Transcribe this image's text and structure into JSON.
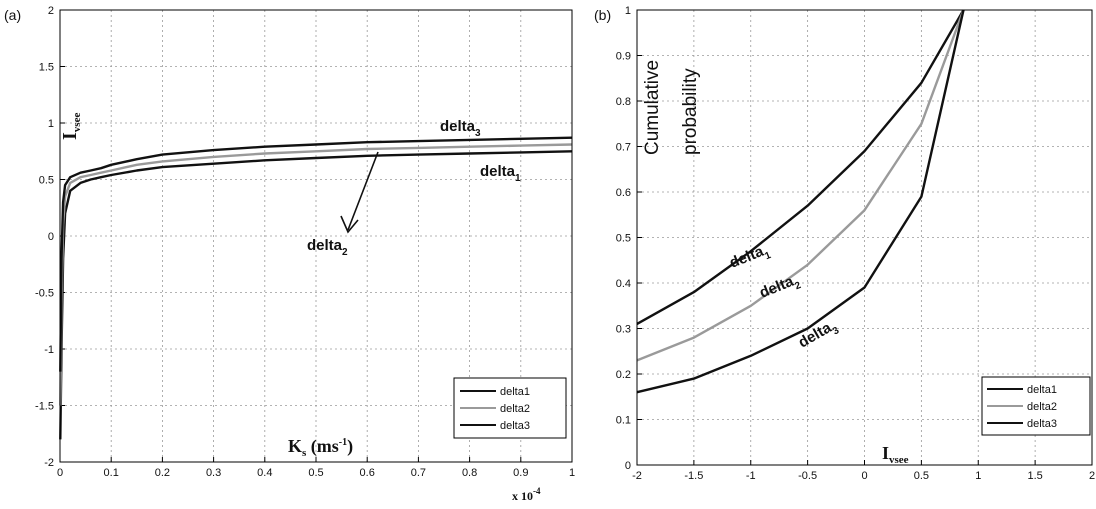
{
  "chart_data": [
    {
      "panel_label": "(a)",
      "type": "line",
      "xlim": [
        0,
        1
      ],
      "ylim": [
        -2,
        2
      ],
      "x_ticks": [
        "0",
        "0.1",
        "0.2",
        "0.3",
        "0.4",
        "0.5",
        "0.6",
        "0.7",
        "0.8",
        "0.9",
        "1"
      ],
      "y_ticks": [
        "-2",
        "-1.5",
        "-1",
        "-0.5",
        "0",
        "0.5",
        "1",
        "1.5",
        "2"
      ],
      "x_multiplier": "x 10",
      "x_multiplier_exp": "-4",
      "xlabel": "K",
      "xlabel_sub": "s",
      "xlabel_unit_pre": " (ms",
      "xlabel_unit_sup": "-1",
      "xlabel_unit_post": ")",
      "ylabel": "I",
      "ylabel_sub": "vsee",
      "grid": true,
      "legend_position": "bottom-right",
      "legend": [
        "delta1",
        "delta2",
        "delta3"
      ],
      "annotations": [
        {
          "text": "delta",
          "sub": "3"
        },
        {
          "text": "delta",
          "sub": "1"
        },
        {
          "text": "delta",
          "sub": "2"
        }
      ],
      "series": [
        {
          "name": "delta1",
          "color": "#111111",
          "x": [
            0.0005,
            0.003,
            0.006,
            0.01,
            0.02,
            0.04,
            0.06,
            0.08,
            0.1,
            0.15,
            0.2,
            0.3,
            0.4,
            0.5,
            0.6,
            0.7,
            0.8,
            0.9,
            1.0
          ],
          "y": [
            -1.8,
            -1.0,
            -0.2,
            0.2,
            0.4,
            0.47,
            0.5,
            0.52,
            0.54,
            0.58,
            0.61,
            0.64,
            0.67,
            0.69,
            0.71,
            0.72,
            0.73,
            0.74,
            0.75
          ]
        },
        {
          "name": "delta2",
          "color": "#9a9a9a",
          "x": [
            0.0005,
            0.003,
            0.006,
            0.01,
            0.02,
            0.04,
            0.06,
            0.08,
            0.1,
            0.15,
            0.2,
            0.3,
            0.4,
            0.5,
            0.6,
            0.7,
            0.8,
            0.9,
            1.0
          ],
          "y": [
            -1.5,
            -0.6,
            0.1,
            0.35,
            0.47,
            0.52,
            0.54,
            0.56,
            0.58,
            0.63,
            0.66,
            0.7,
            0.73,
            0.75,
            0.77,
            0.78,
            0.79,
            0.8,
            0.81
          ]
        },
        {
          "name": "delta3",
          "color": "#111111",
          "x": [
            0.0005,
            0.003,
            0.006,
            0.01,
            0.02,
            0.04,
            0.06,
            0.08,
            0.1,
            0.15,
            0.2,
            0.3,
            0.4,
            0.5,
            0.6,
            0.7,
            0.8,
            0.9,
            1.0
          ],
          "y": [
            -1.2,
            -0.2,
            0.3,
            0.45,
            0.52,
            0.56,
            0.58,
            0.6,
            0.63,
            0.68,
            0.72,
            0.76,
            0.79,
            0.81,
            0.83,
            0.84,
            0.85,
            0.86,
            0.87
          ]
        }
      ]
    },
    {
      "panel_label": "(b)",
      "type": "line",
      "xlim": [
        -2,
        2
      ],
      "ylim": [
        0,
        1
      ],
      "x_ticks": [
        "-2",
        "-1.5",
        "-1",
        "-0.5",
        "0",
        "0.5",
        "1",
        "1.5",
        "2"
      ],
      "y_ticks": [
        "0",
        "0.1",
        "0.2",
        "0.3",
        "0.4",
        "0.5",
        "0.6",
        "0.7",
        "0.8",
        "0.9",
        "1"
      ],
      "xlabel": "I",
      "xlabel_sub": "vsee",
      "ylabel_lines": [
        "Cumulative",
        "probability"
      ],
      "grid": true,
      "legend_position": "bottom-right",
      "legend": [
        "delta1",
        "delta2",
        "delta3"
      ],
      "annotations": [
        {
          "text": "delta",
          "sub": "1"
        },
        {
          "text": "delta",
          "sub": "2"
        },
        {
          "text": "delta",
          "sub": "3"
        }
      ],
      "series": [
        {
          "name": "delta1",
          "color": "#111111",
          "x": [
            -2,
            -1.5,
            -1,
            -0.5,
            0,
            0.5,
            0.87
          ],
          "y": [
            0.31,
            0.38,
            0.47,
            0.57,
            0.69,
            0.84,
            1.0
          ]
        },
        {
          "name": "delta2",
          "color": "#9a9a9a",
          "x": [
            -2,
            -1.5,
            -1,
            -0.5,
            0,
            0.5,
            0.87
          ],
          "y": [
            0.23,
            0.28,
            0.35,
            0.44,
            0.56,
            0.75,
            1.0
          ]
        },
        {
          "name": "delta3",
          "color": "#111111",
          "x": [
            -2,
            -1.5,
            -1,
            -0.5,
            0,
            0.5,
            0.87
          ],
          "y": [
            0.16,
            0.19,
            0.24,
            0.3,
            0.39,
            0.59,
            1.0
          ]
        }
      ]
    }
  ]
}
